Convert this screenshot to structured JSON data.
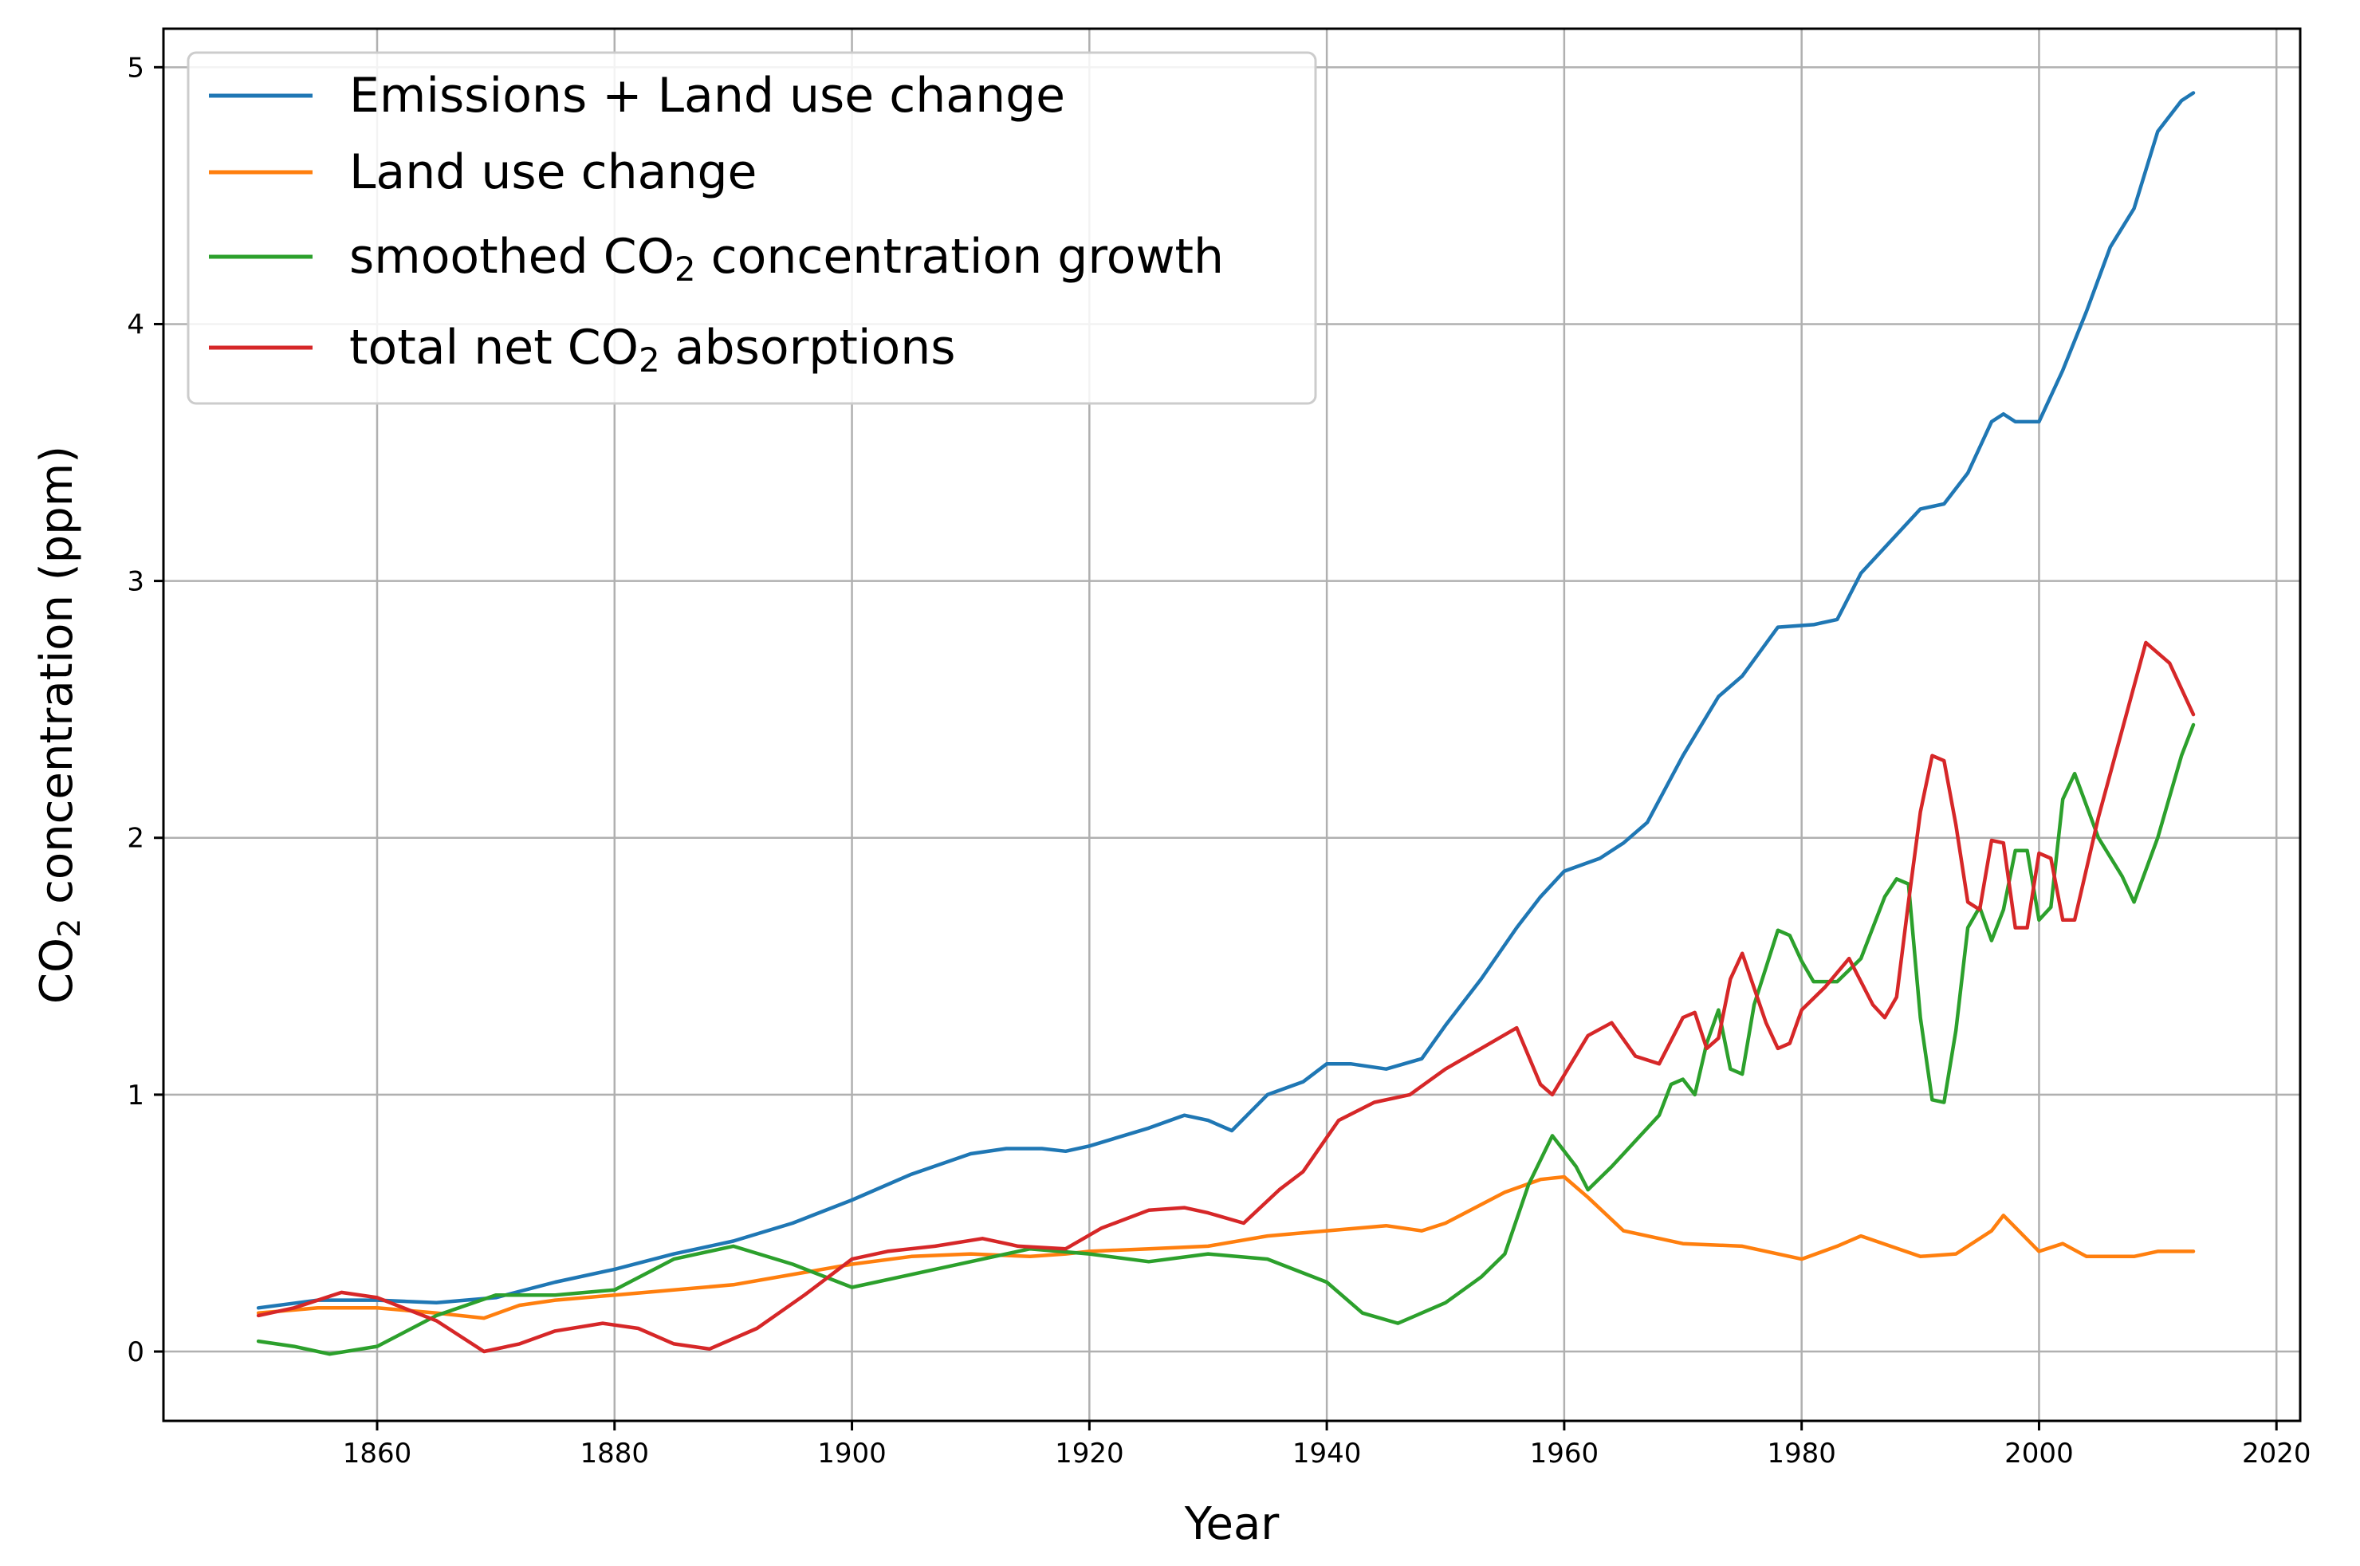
{
  "chart_data": {
    "type": "line",
    "title": "",
    "xlabel": "Year",
    "ylabel_parts": [
      "CO",
      "2",
      " concentration (ppm)"
    ],
    "xlim": [
      1842,
      2022
    ],
    "ylim": [
      -0.27,
      5.15
    ],
    "xticks": [
      1860,
      1880,
      1900,
      1920,
      1940,
      1960,
      1980,
      2000,
      2020
    ],
    "yticks": [
      0,
      1,
      2,
      3,
      4,
      5
    ],
    "grid": true,
    "legend_position": "top-left",
    "series": [
      {
        "name": "Emissions + Land use change",
        "label_parts": [
          "Emissions + Land use change"
        ],
        "color": "#1f77b4",
        "x": [
          1850,
          1855,
          1860,
          1865,
          1870,
          1875,
          1880,
          1885,
          1890,
          1895,
          1900,
          1905,
          1910,
          1913,
          1916,
          1918,
          1920,
          1925,
          1928,
          1930,
          1932,
          1935,
          1938,
          1940,
          1942,
          1945,
          1948,
          1950,
          1953,
          1956,
          1958,
          1960,
          1963,
          1965,
          1967,
          1970,
          1973,
          1975,
          1978,
          1981,
          1983,
          1985,
          1987,
          1990,
          1992,
          1994,
          1996,
          1997,
          1998,
          2000,
          2002,
          2004,
          2006,
          2008,
          2010,
          2012,
          2013
        ],
        "values": [
          0.17,
          0.2,
          0.2,
          0.19,
          0.21,
          0.27,
          0.32,
          0.38,
          0.43,
          0.5,
          0.59,
          0.69,
          0.77,
          0.79,
          0.79,
          0.78,
          0.8,
          0.87,
          0.92,
          0.9,
          0.86,
          1.0,
          1.05,
          1.12,
          1.12,
          1.1,
          1.14,
          1.27,
          1.45,
          1.65,
          1.77,
          1.87,
          1.92,
          1.98,
          2.06,
          2.32,
          2.55,
          2.63,
          2.82,
          2.83,
          2.85,
          3.03,
          3.13,
          3.28,
          3.3,
          3.42,
          3.62,
          3.65,
          3.62,
          3.62,
          3.82,
          4.05,
          4.3,
          4.45,
          4.75,
          4.87,
          4.9
        ]
      },
      {
        "name": "Land use change",
        "label_parts": [
          "Land use change"
        ],
        "color": "#ff7f0e",
        "x": [
          1850,
          1855,
          1860,
          1865,
          1869,
          1872,
          1875,
          1880,
          1885,
          1890,
          1895,
          1900,
          1905,
          1910,
          1915,
          1918,
          1920,
          1925,
          1930,
          1935,
          1940,
          1945,
          1948,
          1950,
          1955,
          1958,
          1960,
          1962,
          1965,
          1970,
          1975,
          1980,
          1983,
          1985,
          1990,
          1993,
          1996,
          1997,
          2000,
          2002,
          2004,
          2008,
          2010,
          2013
        ],
        "values": [
          0.15,
          0.17,
          0.17,
          0.15,
          0.13,
          0.18,
          0.2,
          0.22,
          0.24,
          0.26,
          0.3,
          0.34,
          0.37,
          0.38,
          0.37,
          0.38,
          0.39,
          0.4,
          0.41,
          0.45,
          0.47,
          0.49,
          0.47,
          0.5,
          0.62,
          0.67,
          0.68,
          0.6,
          0.47,
          0.42,
          0.41,
          0.36,
          0.41,
          0.45,
          0.37,
          0.38,
          0.47,
          0.53,
          0.39,
          0.42,
          0.37,
          0.37,
          0.39,
          0.39
        ]
      },
      {
        "name": "smoothed CO2 concentration growth",
        "label_parts": [
          "smoothed CO",
          "2",
          " concentration growth"
        ],
        "color": "#2ca02c",
        "x": [
          1850,
          1853,
          1856,
          1860,
          1865,
          1870,
          1875,
          1880,
          1885,
          1890,
          1895,
          1900,
          1905,
          1910,
          1915,
          1920,
          1925,
          1930,
          1935,
          1940,
          1943,
          1946,
          1950,
          1953,
          1955,
          1957,
          1959,
          1961,
          1962,
          1964,
          1966,
          1968,
          1969,
          1970,
          1971,
          1972,
          1973,
          1974,
          1975,
          1976,
          1978,
          1979,
          1980,
          1981,
          1983,
          1985,
          1987,
          1988,
          1989,
          1990,
          1991,
          1992,
          1993,
          1994,
          1995,
          1996,
          1997,
          1998,
          1999,
          2000,
          2001,
          2002,
          2003,
          2005,
          2007,
          2008,
          2010,
          2012,
          2013
        ],
        "values": [
          0.04,
          0.02,
          -0.01,
          0.02,
          0.14,
          0.22,
          0.22,
          0.24,
          0.36,
          0.41,
          0.34,
          0.25,
          0.3,
          0.35,
          0.4,
          0.38,
          0.35,
          0.38,
          0.36,
          0.27,
          0.15,
          0.11,
          0.19,
          0.29,
          0.38,
          0.65,
          0.84,
          0.72,
          0.63,
          0.72,
          0.82,
          0.92,
          1.04,
          1.06,
          1.0,
          1.2,
          1.33,
          1.1,
          1.08,
          1.35,
          1.64,
          1.62,
          1.52,
          1.44,
          1.44,
          1.53,
          1.77,
          1.84,
          1.82,
          1.3,
          0.98,
          0.97,
          1.25,
          1.65,
          1.73,
          1.6,
          1.72,
          1.95,
          1.95,
          1.68,
          1.73,
          2.15,
          2.25,
          2.0,
          1.85,
          1.75,
          2.0,
          2.32,
          2.44
        ]
      },
      {
        "name": "total net CO2 absorptions",
        "label_parts": [
          "total net CO",
          "2",
          " absorptions"
        ],
        "color": "#d62728",
        "x": [
          1850,
          1853,
          1857,
          1860,
          1865,
          1869,
          1872,
          1875,
          1879,
          1882,
          1885,
          1888,
          1892,
          1896,
          1900,
          1903,
          1907,
          1911,
          1914,
          1918,
          1921,
          1925,
          1928,
          1930,
          1933,
          1936,
          1938,
          1941,
          1944,
          1947,
          1950,
          1953,
          1956,
          1958,
          1959,
          1962,
          1964,
          1966,
          1968,
          1970,
          1971,
          1972,
          1973,
          1974,
          1975,
          1977,
          1978,
          1979,
          1980,
          1982,
          1984,
          1986,
          1987,
          1988,
          1989,
          1990,
          1991,
          1992,
          1993,
          1994,
          1995,
          1996,
          1997,
          1998,
          1999,
          2000,
          2001,
          2002,
          2003,
          2005,
          2007,
          2009,
          2011,
          2013
        ],
        "values": [
          0.14,
          0.17,
          0.23,
          0.21,
          0.12,
          0.0,
          0.03,
          0.08,
          0.11,
          0.09,
          0.03,
          0.01,
          0.09,
          0.22,
          0.36,
          0.39,
          0.41,
          0.44,
          0.41,
          0.4,
          0.48,
          0.55,
          0.56,
          0.54,
          0.5,
          0.63,
          0.7,
          0.9,
          0.97,
          1.0,
          1.1,
          1.18,
          1.26,
          1.04,
          1.0,
          1.23,
          1.28,
          1.15,
          1.12,
          1.3,
          1.32,
          1.18,
          1.22,
          1.45,
          1.55,
          1.28,
          1.18,
          1.2,
          1.33,
          1.42,
          1.53,
          1.35,
          1.3,
          1.38,
          1.75,
          2.1,
          2.32,
          2.3,
          2.05,
          1.75,
          1.72,
          1.99,
          1.98,
          1.65,
          1.65,
          1.94,
          1.92,
          1.68,
          1.68,
          2.08,
          2.42,
          2.76,
          2.68,
          2.48
        ]
      }
    ]
  }
}
